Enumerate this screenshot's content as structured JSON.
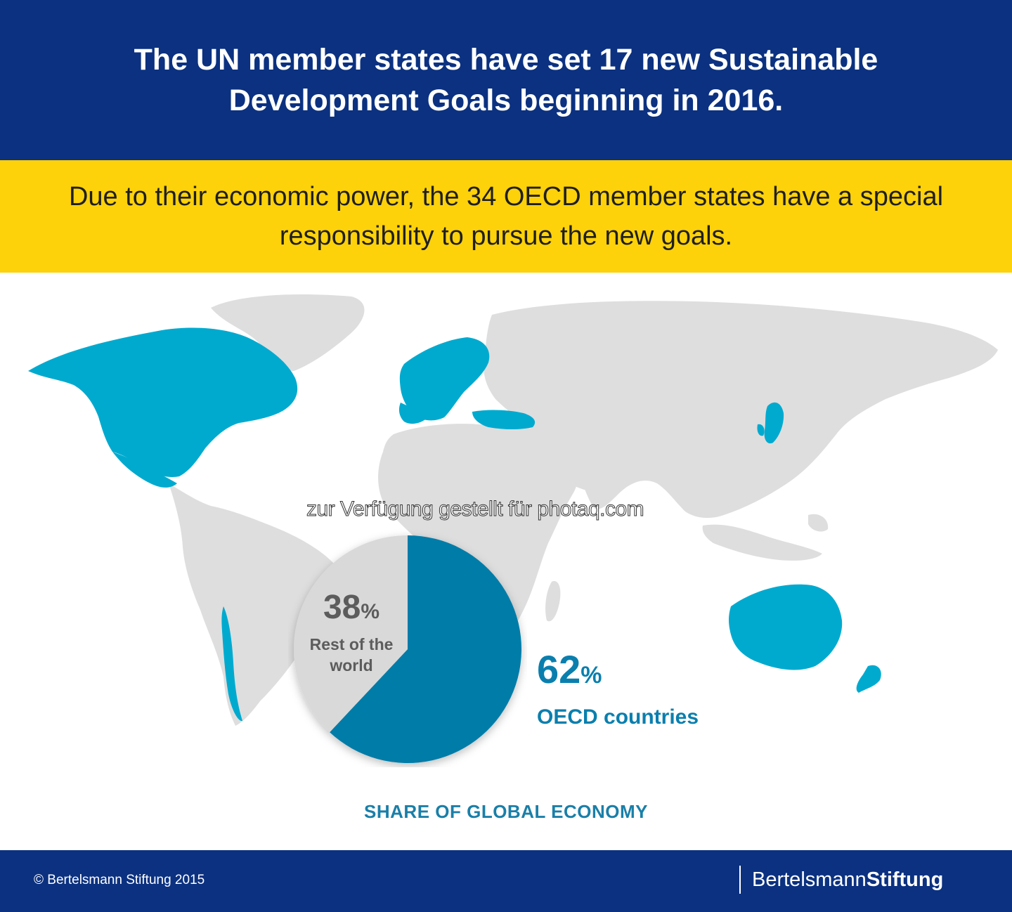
{
  "header": {
    "title": "The UN member states have set 17 new Sustainable Development Goals beginning in 2016."
  },
  "subheader": {
    "text": "Due to their economic power, the 34 OECD member states have a special responsibility to pursue the new goals."
  },
  "watermark": "zur Verfügung gestellt für photaq.com",
  "colors": {
    "header_bg": "#0b3180",
    "highlight_bg": "#fdd20a",
    "oecd_map": "#00aacf",
    "rest_map": "#dedede",
    "oecd_slice": "#007ba8",
    "rest_slice": "#d9d9d9",
    "accent_text": "#0a7fae"
  },
  "chart_data": {
    "type": "pie",
    "title": "SHARE OF GLOBAL ECONOMY",
    "slices": [
      {
        "label": "OECD countries",
        "value": 62,
        "display": "62",
        "unit": "%"
      },
      {
        "label": "Rest of the world",
        "value": 38,
        "display": "38",
        "unit": "%"
      }
    ]
  },
  "footer": {
    "copyright": "© Bertelsmann Stiftung 2015",
    "logo_regular": "Bertelsmann",
    "logo_bold": "Stiftung"
  }
}
